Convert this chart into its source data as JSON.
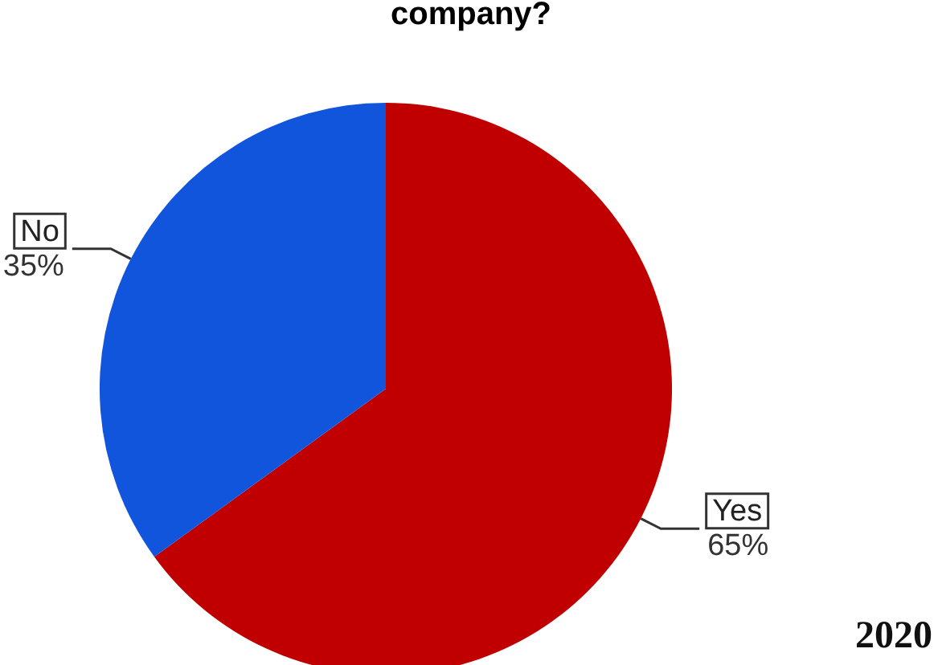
{
  "chart_data": {
    "type": "pie",
    "title": "company?",
    "categories": [
      "Yes",
      "No"
    ],
    "values": [
      65,
      35
    ],
    "colors": [
      "#c00000",
      "#1155dd"
    ],
    "value_labels": [
      "65%",
      "35%"
    ],
    "annotations": [
      "2020"
    ],
    "legend": false
  }
}
